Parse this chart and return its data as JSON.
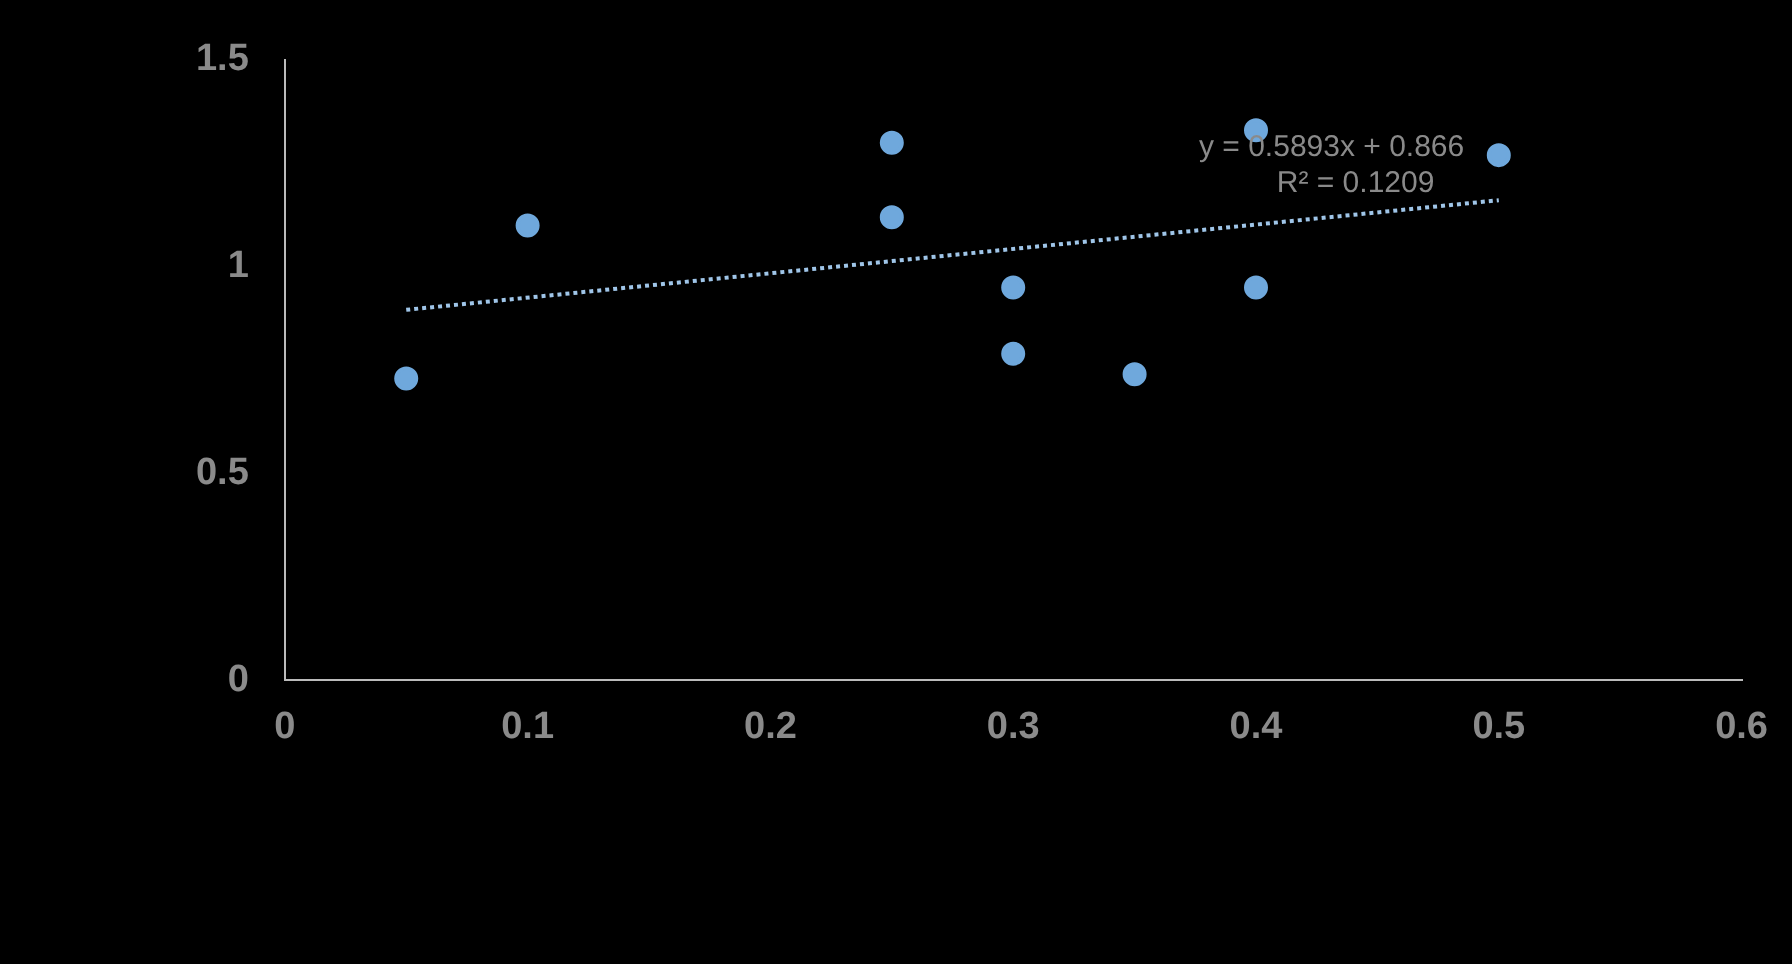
{
  "chart_data": {
    "type": "scatter",
    "xlim": [
      0,
      0.6
    ],
    "xticks": [
      0,
      0.1,
      0.2,
      0.3,
      0.4,
      0.5,
      0.6
    ],
    "ylim": [
      0,
      1.5
    ],
    "yticks": [
      0,
      0.5,
      1,
      1.5
    ],
    "grid": false,
    "legend": false,
    "marker": "circle",
    "series": [
      {
        "color": "#6fa8dc",
        "x": [
          0.05,
          0.1,
          0.25,
          0.25,
          0.3,
          0.3,
          0.35,
          0.4,
          0.4,
          0.5
        ],
        "values": [
          0.73,
          1.1,
          1.3,
          1.12,
          0.95,
          0.79,
          0.74,
          1.33,
          0.95,
          1.27
        ]
      },
      {
        "type": "line",
        "color": "#9fc5e8",
        "line_style": "dotted",
        "marker": "none",
        "x": [
          0.05,
          0.5
        ],
        "values": [
          0.896,
          1.161
        ]
      }
    ],
    "annotations": [
      "y = 0.5893x + 0.866",
      "R² = 0.1209"
    ]
  }
}
